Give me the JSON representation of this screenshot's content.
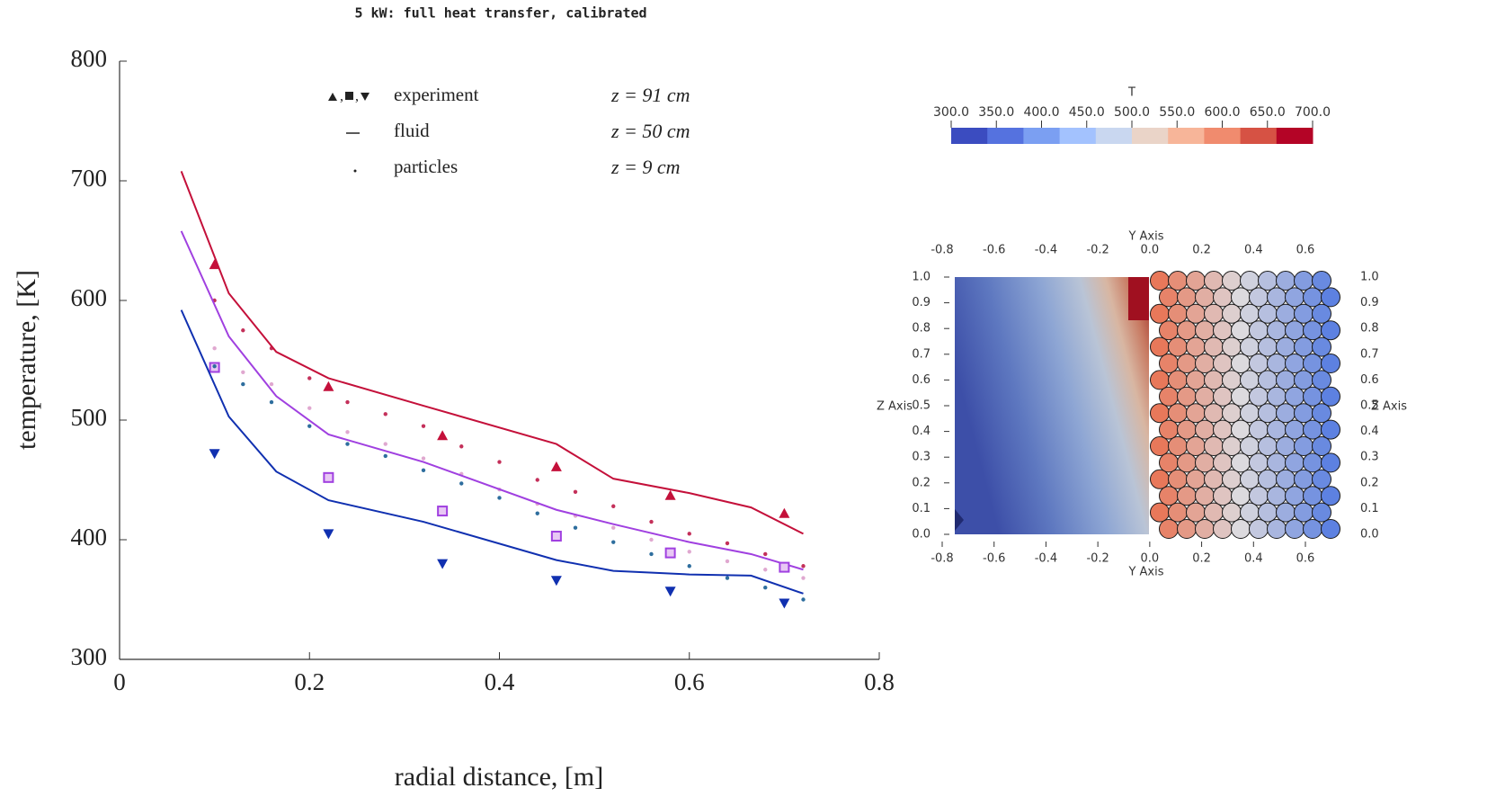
{
  "chart_data": {
    "type": "line",
    "title": "5 kW: full heat transfer, calibrated",
    "x_label": "radial distance, [m]",
    "y_label": "temperature, [K]",
    "xlim": [
      0,
      0.8
    ],
    "xticks": [
      0,
      0.2,
      0.4,
      0.6,
      0.8
    ],
    "ylim": [
      300,
      800
    ],
    "yticks": [
      300,
      400,
      500,
      600,
      700,
      800
    ],
    "legend": [
      "experiment",
      "fluid",
      "particles"
    ],
    "fluid_x": [
      0.065,
      0.115,
      0.165,
      0.22,
      0.32,
      0.46,
      0.52,
      0.6,
      0.665,
      0.72
    ],
    "experiment_x": [
      0.1,
      0.22,
      0.34,
      0.46,
      0.58,
      0.7
    ],
    "particle_x": [
      0.1,
      0.13,
      0.16,
      0.2,
      0.24,
      0.28,
      0.32,
      0.36,
      0.4,
      0.44,
      0.48,
      0.52,
      0.56,
      0.6,
      0.64,
      0.68,
      0.72
    ],
    "series": [
      {
        "name": "z = 91 cm",
        "color": "#c4103a",
        "particle_color": "#c4305a",
        "marker": "triangle-up",
        "fluid": [
          708,
          606,
          557,
          535,
          512,
          480,
          451,
          439,
          427,
          405
        ],
        "experiment": [
          630,
          528,
          487,
          461,
          437,
          422
        ],
        "particles": [
          600,
          575,
          560,
          535,
          515,
          505,
          495,
          478,
          465,
          450,
          440,
          428,
          415,
          405,
          397,
          388,
          378
        ]
      },
      {
        "name": "z = 50 cm",
        "color": "#a040e0",
        "particle_color": "#e0a8d0",
        "marker": "square",
        "fluid": [
          658,
          570,
          520,
          488,
          465,
          425,
          413,
          398,
          388,
          375
        ],
        "experiment": [
          544,
          452,
          424,
          403,
          389,
          377
        ],
        "particles": [
          560,
          540,
          530,
          510,
          490,
          480,
          468,
          455,
          442,
          430,
          420,
          410,
          400,
          390,
          382,
          375,
          368
        ]
      },
      {
        "name": "z = 9 cm",
        "color": "#1030b0",
        "particle_color": "#2e6e9e",
        "marker": "triangle-down",
        "fluid": [
          592,
          503,
          457,
          433,
          415,
          383,
          374,
          371,
          370,
          355
        ],
        "experiment": [
          472,
          405,
          380,
          366,
          357,
          347
        ],
        "particles": [
          545,
          530,
          515,
          495,
          480,
          470,
          458,
          447,
          435,
          422,
          410,
          398,
          388,
          378,
          368,
          360,
          350
        ]
      }
    ]
  },
  "simulation": {
    "colorbar_title": "T",
    "colorbar_ticks": [
      {
        "value": 300,
        "label": "300.0"
      },
      {
        "value": 350,
        "label": "350.0"
      },
      {
        "value": 400,
        "label": "400.0"
      },
      {
        "value": 450,
        "label": "450.0"
      },
      {
        "value": 500,
        "label": "500.0"
      },
      {
        "value": 550,
        "label": "550.0"
      },
      {
        "value": 600,
        "label": "600.0"
      },
      {
        "value": 650,
        "label": "650.0"
      },
      {
        "value": 700,
        "label": "700.0"
      }
    ],
    "colorbar_colors": [
      "#3b4cc0",
      "#5572df",
      "#7b9ff2",
      "#a3c2fe",
      "#c9d7f0",
      "#ead4c8",
      "#f7b599",
      "#f08b6e",
      "#d65244",
      "#b40426"
    ],
    "y_axis_label": "Y Axis",
    "z_axis_label": "Z Axis",
    "ylim": [
      -0.8,
      0.6
    ],
    "yticks": [
      -0.8,
      -0.6,
      -0.4,
      -0.2,
      {
        "value": 0,
        "label": "0.0"
      },
      0.2,
      0.4,
      0.6
    ],
    "zlim": [
      0,
      1
    ],
    "zticks": [
      {
        "value": 0,
        "label": "0.0"
      },
      0.1,
      0.2,
      0.3,
      0.4,
      0.5,
      0.6,
      0.7,
      0.8,
      0.9,
      {
        "value": 1,
        "label": "1.0"
      }
    ]
  }
}
